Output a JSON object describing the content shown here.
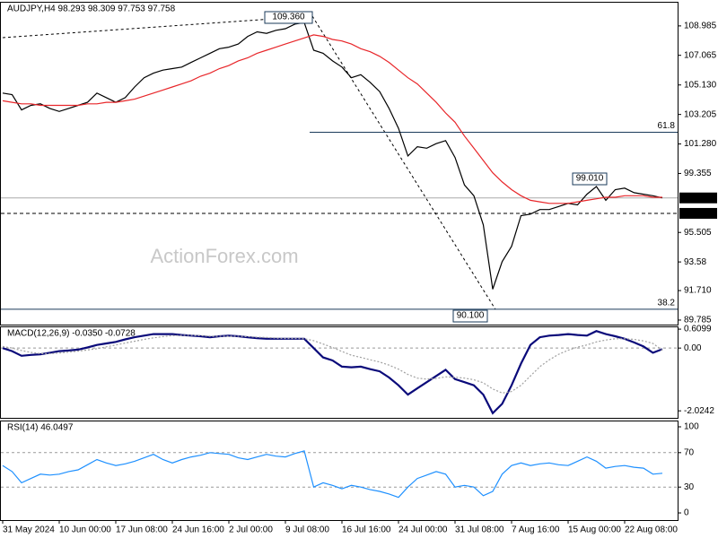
{
  "chart_data": [
    {
      "type": "line",
      "title": "AUDJPY,H4  98.293 98.309 97.753 97.758",
      "watermark": "ActionForex.com",
      "categories": [
        "31 May 2024",
        null,
        null,
        null,
        null,
        null,
        "10 Jun 00:00",
        null,
        null,
        null,
        null,
        null,
        "17 Jun 08:00",
        null,
        null,
        null,
        null,
        null,
        "24 Jun 16:00",
        null,
        null,
        null,
        null,
        null,
        "2 Jul 00:00",
        null,
        null,
        null,
        null,
        null,
        "9 Jul 08:00",
        null,
        null,
        null,
        null,
        null,
        "16 Jul 16:00",
        null,
        null,
        null,
        null,
        null,
        "24 Jul 00:00",
        null,
        null,
        null,
        null,
        null,
        "31 Jul 08:00",
        null,
        null,
        null,
        null,
        null,
        "7 Aug 16:00",
        null,
        null,
        null,
        null,
        null,
        "15 Aug 00:00",
        null,
        null,
        null,
        null,
        null,
        "22 Aug 08:00",
        null,
        null,
        null,
        null
      ],
      "series": [
        {
          "color": "#000000",
          "values": [
            104.6,
            104.5,
            103.5,
            103.8,
            103.9,
            103.6,
            103.4,
            103.6,
            103.8,
            104.0,
            104.6,
            104.3,
            104.0,
            104.3,
            105.0,
            105.6,
            105.9,
            106.1,
            106.2,
            106.3,
            106.6,
            106.9,
            107.2,
            107.5,
            107.6,
            107.8,
            108.3,
            108.6,
            108.5,
            108.7,
            108.8,
            109.1,
            109.2,
            107.4,
            107.2,
            106.7,
            106.3,
            105.6,
            105.8,
            105.3,
            104.7,
            103.6,
            102.3,
            100.5,
            101.1,
            101.0,
            101.3,
            101.5,
            100.4,
            98.6,
            97.9,
            96.0,
            91.8,
            93.6,
            94.6,
            96.6,
            96.7,
            97.0,
            97.0,
            97.2,
            97.4,
            97.3,
            98.0,
            98.5,
            97.6,
            98.3,
            98.4,
            98.1,
            98.0,
            97.9,
            97.758
          ]
        },
        {
          "color": "#e8262a",
          "values": [
            104.1,
            104.0,
            103.9,
            103.9,
            103.8,
            103.8,
            103.8,
            103.8,
            103.8,
            103.9,
            103.9,
            104.0,
            104.0,
            104.1,
            104.2,
            104.4,
            104.6,
            104.8,
            105.0,
            105.2,
            105.4,
            105.7,
            105.9,
            106.2,
            106.4,
            106.7,
            106.9,
            107.2,
            107.4,
            107.6,
            107.8,
            108.0,
            108.2,
            108.4,
            108.3,
            108.1,
            108.0,
            107.8,
            107.5,
            107.3,
            107.0,
            106.6,
            106.1,
            105.6,
            105.2,
            104.6,
            104.0,
            103.3,
            102.7,
            101.8,
            101.0,
            100.2,
            99.4,
            98.8,
            98.3,
            97.9,
            97.6,
            97.5,
            97.4,
            97.4,
            97.4,
            97.5,
            97.6,
            97.7,
            97.8,
            97.8,
            97.9,
            97.9,
            97.9,
            97.8,
            97.8
          ]
        }
      ],
      "ylim": [
        89.49,
        110.5
      ],
      "yticks": [
        108.985,
        107.065,
        {
          "value": 105.13,
          "label": "105.130"
        },
        103.205,
        {
          "value": 101.28,
          "label": "101.280"
        },
        99.355,
        95.505,
        93.58,
        {
          "value": 91.71,
          "label": "91.710"
        },
        89.785
      ],
      "grid": false,
      "annotations": [
        "109.360",
        "99.010",
        "90.100"
      ],
      "levels": [
        {
          "name": "61.8",
          "value": 102.04
        },
        {
          "name": "38.2",
          "value": 90.49
        }
      ],
      "price_lines": [
        97.758,
        {
          "value": 96.75,
          "label": "96.750"
        }
      ]
    },
    {
      "type": "line",
      "title": "MACD(12,26,9) -0.0350 -0.0728",
      "series": [
        {
          "color": "#0a0a7a",
          "values": [
            0.0,
            -0.1,
            -0.25,
            -0.22,
            -0.2,
            -0.15,
            -0.1,
            -0.08,
            -0.05,
            0.02,
            0.1,
            0.15,
            0.2,
            0.28,
            0.35,
            0.4,
            0.45,
            0.45,
            0.45,
            0.42,
            0.4,
            0.38,
            0.35,
            0.38,
            0.4,
            0.38,
            0.35,
            0.32,
            0.3,
            0.3,
            0.3,
            0.3,
            0.3,
            0.0,
            -0.3,
            -0.4,
            -0.6,
            -0.62,
            -0.6,
            -0.68,
            -0.75,
            -0.95,
            -1.2,
            -1.5,
            -1.3,
            -1.1,
            -0.9,
            -0.7,
            -1.0,
            -1.1,
            -1.2,
            -1.5,
            -2.1,
            -1.8,
            -1.2,
            -0.5,
            0.1,
            0.35,
            0.4,
            0.42,
            0.45,
            0.42,
            0.4,
            0.55,
            0.45,
            0.38,
            0.3,
            0.18,
            0.05,
            -0.15,
            -0.035
          ]
        },
        {
          "color": "#a0a0a0",
          "values": [
            0.05,
            0.0,
            -0.08,
            -0.14,
            -0.18,
            -0.18,
            -0.16,
            -0.13,
            -0.1,
            -0.06,
            -0.02,
            0.04,
            0.1,
            0.16,
            0.22,
            0.28,
            0.33,
            0.37,
            0.4,
            0.41,
            0.41,
            0.4,
            0.38,
            0.38,
            0.38,
            0.38,
            0.37,
            0.35,
            0.34,
            0.32,
            0.31,
            0.31,
            0.3,
            0.24,
            0.13,
            0.02,
            -0.11,
            -0.23,
            -0.3,
            -0.38,
            -0.45,
            -0.55,
            -0.68,
            -0.85,
            -0.97,
            -1.0,
            -0.98,
            -0.93,
            -0.94,
            -0.97,
            -1.02,
            -1.12,
            -1.32,
            -1.45,
            -1.4,
            -1.2,
            -0.9,
            -0.6,
            -0.38,
            -0.2,
            -0.07,
            0.03,
            0.1,
            0.2,
            0.26,
            0.3,
            0.3,
            0.28,
            0.23,
            0.15,
            -0.0728
          ]
        }
      ],
      "ylim": [
        -2.25,
        0.67
      ],
      "yticks": [
        0.6099,
        {
          "value": 0,
          "label": "0.00"
        },
        -2.0242
      ],
      "grid": true
    },
    {
      "type": "line",
      "title": "RSI(14) 46.0497",
      "series": [
        {
          "color": "#1e90ff",
          "values": [
            55,
            48,
            35,
            40,
            45,
            44,
            45,
            48,
            50,
            56,
            62,
            58,
            55,
            57,
            60,
            64,
            68,
            62,
            58,
            62,
            65,
            67,
            70,
            69,
            68,
            64,
            62,
            65,
            68,
            66,
            65,
            69,
            72,
            30,
            35,
            32,
            28,
            32,
            30,
            27,
            25,
            22,
            18,
            30,
            40,
            44,
            48,
            45,
            30,
            32,
            30,
            20,
            25,
            45,
            55,
            58,
            55,
            57,
            58,
            56,
            55,
            60,
            65,
            60,
            52,
            54,
            55,
            53,
            52,
            45,
            46.0497
          ]
        }
      ],
      "ylim": [
        -8.3,
        106.25
      ],
      "yticks": [
        100,
        70,
        30,
        0
      ],
      "grid": true
    }
  ]
}
